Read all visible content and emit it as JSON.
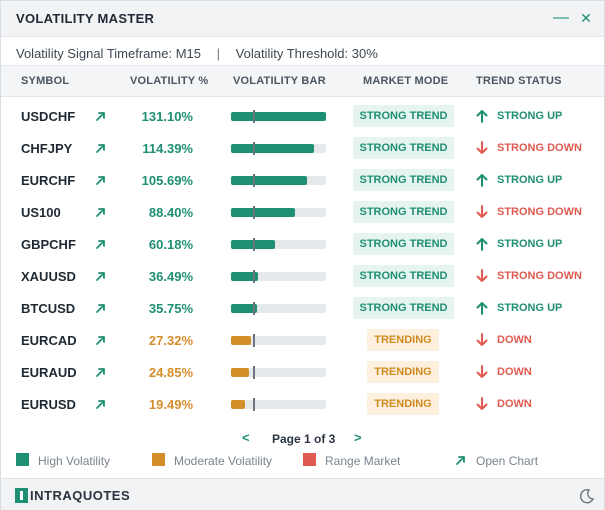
{
  "window": {
    "title": "VOLATILITY MASTER",
    "minimize_glyph": "—",
    "close_glyph": "✕"
  },
  "settings": {
    "timeframe_label": "Volatility Signal Timeframe:",
    "timeframe_value": "M15",
    "separator": "|",
    "threshold_label": "Volatility Threshold:",
    "threshold_value": "30%"
  },
  "columns": {
    "symbol": "SYMBOL",
    "volatility": "VOLATILITY %",
    "bar": "VOLATILITY BAR",
    "mode": "MARKET MODE",
    "status": "TREND STATUS"
  },
  "colors": {
    "high": "#1f8f74",
    "moderate": "#d58f2a",
    "range": "#e05a50"
  },
  "rows": [
    {
      "symbol": "USDCHF",
      "volatility": "131.10%",
      "level": 1.0,
      "tier": "high",
      "mode": "STRONG TREND",
      "mode_kind": "strong",
      "status": "STRONG UP",
      "dir": "up"
    },
    {
      "symbol": "CHFJPY",
      "volatility": "114.39%",
      "level": 0.87,
      "tier": "high",
      "mode": "STRONG TREND",
      "mode_kind": "strong",
      "status": "STRONG DOWN",
      "dir": "down"
    },
    {
      "symbol": "EURCHF",
      "volatility": "105.69%",
      "level": 0.8,
      "tier": "high",
      "mode": "STRONG TREND",
      "mode_kind": "strong",
      "status": "STRONG UP",
      "dir": "up"
    },
    {
      "symbol": "US100",
      "volatility": "88.40%",
      "level": 0.67,
      "tier": "high",
      "mode": "STRONG TREND",
      "mode_kind": "strong",
      "status": "STRONG DOWN",
      "dir": "down"
    },
    {
      "symbol": "GBPCHF",
      "volatility": "60.18%",
      "level": 0.46,
      "tier": "high",
      "mode": "STRONG TREND",
      "mode_kind": "strong",
      "status": "STRONG UP",
      "dir": "up"
    },
    {
      "symbol": "XAUUSD",
      "volatility": "36.49%",
      "level": 0.28,
      "tier": "high",
      "mode": "STRONG TREND",
      "mode_kind": "strong",
      "status": "STRONG DOWN",
      "dir": "down"
    },
    {
      "symbol": "BTCUSD",
      "volatility": "35.75%",
      "level": 0.27,
      "tier": "high",
      "mode": "STRONG TREND",
      "mode_kind": "strong",
      "status": "STRONG UP",
      "dir": "up"
    },
    {
      "symbol": "EURCAD",
      "volatility": "27.32%",
      "level": 0.21,
      "tier": "moderate",
      "mode": "TRENDING",
      "mode_kind": "trending",
      "status": "DOWN",
      "dir": "down"
    },
    {
      "symbol": "EURAUD",
      "volatility": "24.85%",
      "level": 0.19,
      "tier": "moderate",
      "mode": "TRENDING",
      "mode_kind": "trending",
      "status": "DOWN",
      "dir": "down"
    },
    {
      "symbol": "EURUSD",
      "volatility": "19.49%",
      "level": 0.15,
      "tier": "moderate",
      "mode": "TRENDING",
      "mode_kind": "trending",
      "status": "DOWN",
      "dir": "down"
    }
  ],
  "pagination": {
    "prev_glyph": "<",
    "next_glyph": ">",
    "text": "Page 1 of 3"
  },
  "legend": {
    "high": "High Volatility",
    "moderate": "Moderate Volatility",
    "range": "Range Market",
    "open_chart": "Open Chart"
  },
  "footer": {
    "brand": "INTRAQUOTES"
  }
}
